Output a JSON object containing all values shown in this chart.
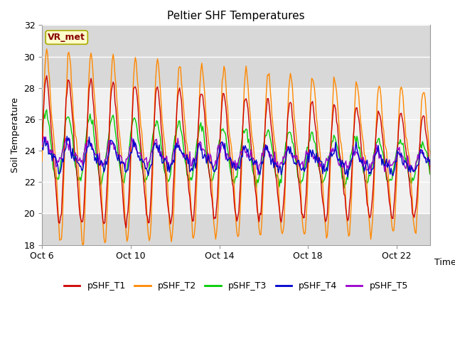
{
  "title": "Peltier SHF Temperatures",
  "ylabel": "Soil Temperature",
  "xlabel": "Time",
  "ylim": [
    18,
    32
  ],
  "yticks": [
    18,
    20,
    22,
    24,
    26,
    28,
    30,
    32
  ],
  "shade_ymin": 20.0,
  "shade_ymax": 28.0,
  "series_colors": [
    "#cc0000",
    "#ff8800",
    "#00cc00",
    "#0000cc",
    "#9900cc"
  ],
  "series_names": [
    "pSHF_T1",
    "pSHF_T2",
    "pSHF_T3",
    "pSHF_T4",
    "pSHF_T5"
  ],
  "annotation_text": "VR_met",
  "annotation_facecolor": "#ffffcc",
  "annotation_edgecolor": "#aaaa00",
  "axes_bg_color": "#d8d8d8",
  "shade_color": "#f0f0f0",
  "n_days": 17.5,
  "xtick_labels": [
    "Oct 6",
    "Oct 10",
    "Oct 14",
    "Oct 18",
    "Oct 22"
  ],
  "xtick_days": [
    0,
    4,
    8,
    12,
    16
  ]
}
